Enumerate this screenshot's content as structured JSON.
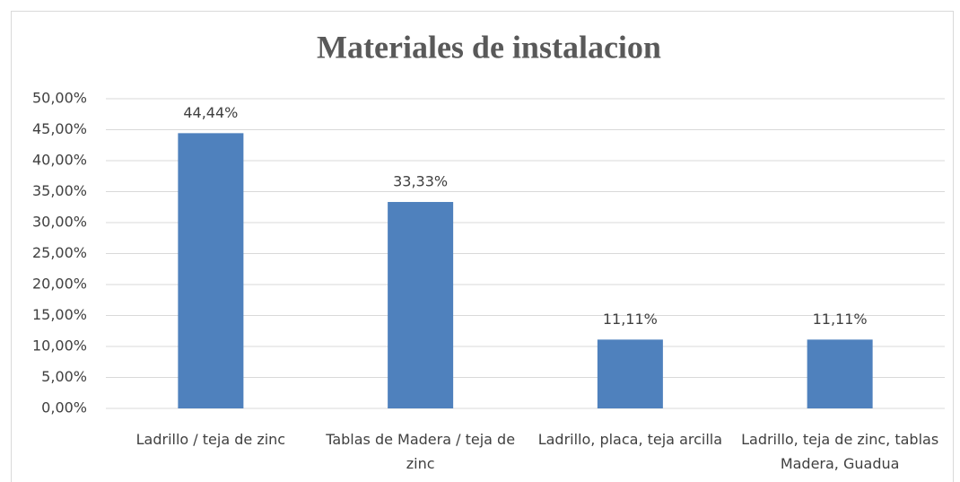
{
  "chart_data": {
    "type": "bar",
    "title": "Materiales de instalacion",
    "categories": [
      "Ladrillo / teja de zinc",
      "Tablas de Madera / teja de zinc",
      "Ladrillo, placa,  teja arcilla",
      "Ladrillo, teja de zinc, tablas Madera, Guadua"
    ],
    "values": [
      44.44,
      33.33,
      11.11,
      11.11
    ],
    "value_labels": [
      "44,44%",
      "33,33%",
      "11,11%",
      "11,11%"
    ],
    "color": "#4f81bd",
    "ylim": [
      0,
      50
    ],
    "yticks": [
      {
        "value": 0,
        "label": "0,00%"
      },
      {
        "value": 5,
        "label": "5,00%"
      },
      {
        "value": 10,
        "label": "10,00%"
      },
      {
        "value": 15,
        "label": "15,00%"
      },
      {
        "value": 20,
        "label": "20,00%"
      },
      {
        "value": 25,
        "label": "25,00%"
      },
      {
        "value": 30,
        "label": "30,00%"
      },
      {
        "value": 35,
        "label": "35,00%"
      },
      {
        "value": 40,
        "label": "40,00%"
      },
      {
        "value": 45,
        "label": "45,00%"
      },
      {
        "value": 50,
        "label": "50,00%"
      }
    ],
    "grid": true
  }
}
